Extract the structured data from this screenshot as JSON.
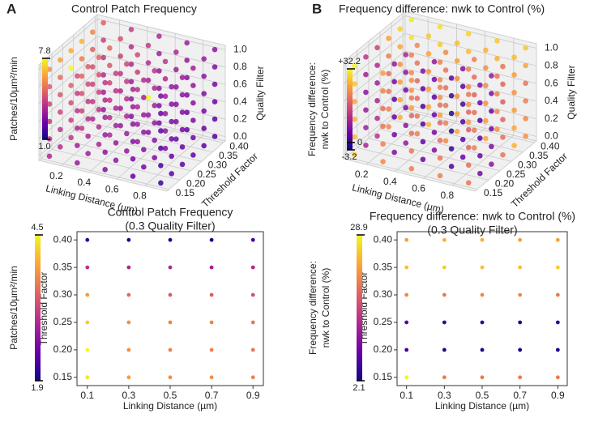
{
  "chart_data": [
    {
      "type": "scatter3d",
      "panel": "A",
      "title": "Control Patch Frequency",
      "x_label": "Linking Distance (µm)",
      "y_label": "Threshold Factor",
      "z_label": "Quality Filter",
      "colorbar_label": [
        "Patches/10µm²/min"
      ],
      "colormap": [
        "#0d0887",
        "#6a00a8",
        "#b12a90",
        "#e16462",
        "#fca636",
        "#f0f921"
      ],
      "x": [
        0.1,
        0.3,
        0.5,
        0.7,
        0.9
      ],
      "y": [
        0.15,
        0.2,
        0.25,
        0.3,
        0.35,
        0.4
      ],
      "z": [
        0,
        0.2,
        0.4,
        0.6,
        0.8,
        1
      ],
      "xlim": [
        0.04,
        0.96
      ],
      "ylim": [
        0.14,
        0.41
      ],
      "zlim": [
        -0.05,
        1.05
      ],
      "clim": [
        1,
        7.8
      ],
      "xticks": [
        0.2,
        0.4,
        0.6,
        0.8
      ],
      "yticks": [
        0.15,
        {
          "value": 0.2,
          "label": "0.20"
        },
        0.25,
        {
          "value": 0.3,
          "label": "0.30"
        },
        0.35,
        {
          "value": 0.4,
          "label": "0.40"
        }
      ],
      "zticks": [
        {
          "value": 0,
          "label": "0.0"
        },
        0.2,
        0.4,
        0.6,
        0.8,
        {
          "value": 1,
          "label": "1.0"
        }
      ],
      "cticks": [
        {
          "value": 1,
          "label": "1.0"
        },
        7.8
      ],
      "values": [
        [
          [
            3.6,
            3.2,
            2.8,
            2.4,
            1.6
          ],
          [
            3.8,
            3.3,
            3.0,
            2.6,
            2.1
          ],
          [
            4.0,
            3.5,
            3.1,
            2.7,
            2.2
          ],
          [
            4.1,
            3.6,
            3.2,
            2.8,
            2.3
          ],
          [
            3.7,
            3.2,
            2.9,
            2.5,
            2.2
          ],
          [
            3.2,
            2.9,
            2.6,
            2.3,
            2.0
          ]
        ],
        [
          [
            3.8,
            3.4,
            3.0,
            2.6,
            1.8
          ],
          [
            4.0,
            3.6,
            3.2,
            2.8,
            2.3
          ],
          [
            4.3,
            3.8,
            3.3,
            2.9,
            2.4
          ],
          [
            4.4,
            3.8,
            3.4,
            3.0,
            2.5
          ],
          [
            4.0,
            3.4,
            3.1,
            2.7,
            2.4
          ],
          [
            3.4,
            3.1,
            2.8,
            2.5,
            2.2
          ]
        ],
        [
          [
            4.1,
            3.6,
            3.2,
            2.8,
            2.0
          ],
          [
            4.4,
            3.8,
            3.4,
            3.0,
            2.5
          ],
          [
            4.6,
            4.0,
            3.6,
            3.1,
            2.6
          ],
          [
            4.7,
            4.1,
            3.6,
            3.2,
            2.7
          ],
          [
            4.3,
            3.7,
            7.8,
            2.9,
            2.6
          ],
          [
            3.7,
            3.3,
            3.0,
            2.7,
            2.4
          ]
        ],
        [
          [
            4.4,
            3.9,
            3.4,
            3.0,
            2.2
          ],
          [
            4.8,
            4.1,
            3.6,
            3.2,
            2.7
          ],
          [
            5.0,
            4.3,
            3.8,
            3.3,
            2.8
          ],
          [
            5.1,
            4.4,
            3.9,
            3.4,
            2.9
          ],
          [
            4.6,
            4.0,
            3.5,
            3.1,
            2.8
          ],
          [
            4.0,
            3.6,
            3.2,
            2.9,
            2.6
          ]
        ],
        [
          [
            4.9,
            4.2,
            3.7,
            3.2,
            2.4
          ],
          [
            5.3,
            4.5,
            3.9,
            3.4,
            2.9
          ],
          [
            7.8,
            4.7,
            4.1,
            3.6,
            3.0
          ],
          [
            5.6,
            4.8,
            4.2,
            3.7,
            3.1
          ],
          [
            5.0,
            4.3,
            3.8,
            3.3,
            3.0
          ],
          [
            4.3,
            3.8,
            3.4,
            3.1,
            2.8
          ]
        ],
        [
          [
            6.0,
            4.6,
            4.0,
            3.5,
            2.6
          ],
          [
            6.3,
            4.9,
            4.2,
            3.7,
            3.1
          ],
          [
            6.5,
            5.1,
            4.4,
            3.9,
            3.3
          ],
          [
            6.6,
            5.2,
            4.5,
            4.0,
            3.4
          ],
          [
            5.8,
            4.7,
            4.1,
            3.6,
            3.2
          ],
          [
            5.0,
            4.2,
            3.7,
            3.3,
            3.0
          ]
        ]
      ]
    },
    {
      "type": "scatter3d",
      "panel": "B",
      "title": "Frequency difference: nwk to Control (%)",
      "x_label": "Linking Distance (µm)",
      "y_label": "Threshold Factor",
      "z_label": "Quality Filter",
      "colorbar_label": [
        "Frequency difference:",
        "nwk to Control (%)"
      ],
      "colormap": [
        "#0d0887",
        "#6a00a8",
        "#b12a90",
        "#e16462",
        "#fca636",
        "#f0f921"
      ],
      "x": [
        0.1,
        0.3,
        0.5,
        0.7,
        0.9
      ],
      "y": [
        0.15,
        0.2,
        0.25,
        0.3,
        0.35,
        0.4
      ],
      "z": [
        0,
        0.2,
        0.4,
        0.6,
        0.8,
        1
      ],
      "xlim": [
        0.04,
        0.96
      ],
      "ylim": [
        0.14,
        0.41
      ],
      "zlim": [
        -0.05,
        1.05
      ],
      "clim": [
        -3.2,
        32.2
      ],
      "xticks": [
        0.2,
        0.4,
        0.6,
        0.8
      ],
      "yticks": [
        0.15,
        {
          "value": 0.2,
          "label": "0.20"
        },
        0.25,
        {
          "value": 0.3,
          "label": "0.30"
        },
        0.35,
        {
          "value": 0.4,
          "label": "0.40"
        }
      ],
      "zticks": [
        {
          "value": 0,
          "label": "0.0"
        },
        0.2,
        0.4,
        0.6,
        0.8,
        {
          "value": 1,
          "label": "1.0"
        }
      ],
      "cticks": [
        {
          "value": -3.2,
          "label": "-3.2"
        },
        0,
        {
          "value": 32.2,
          "label": "+32.2"
        }
      ],
      "values": [
        [
          [
            28,
            22,
            21,
            21,
            20
          ],
          [
            10,
            6,
            4,
            2,
            5
          ],
          [
            12,
            8,
            6,
            4,
            7
          ],
          [
            22,
            21,
            22,
            21,
            20
          ],
          [
            26,
            26,
            25,
            25,
            26
          ],
          [
            24,
            24,
            24,
            23,
            23
          ]
        ],
        [
          [
            27,
            21,
            20,
            20,
            19
          ],
          [
            9,
            5,
            3,
            0,
            4
          ],
          [
            11,
            7,
            5,
            3,
            6
          ],
          [
            21,
            20,
            21,
            20,
            19
          ],
          [
            25,
            25,
            24,
            24,
            25
          ],
          [
            23,
            23,
            23,
            22,
            22
          ]
        ],
        [
          [
            26,
            20,
            19,
            19,
            18
          ],
          [
            8,
            4,
            2,
            -1,
            3
          ],
          [
            10,
            6,
            4,
            2,
            5
          ],
          [
            20,
            19,
            20,
            19,
            18
          ],
          [
            24,
            24,
            23,
            23,
            24
          ],
          [
            22,
            22,
            22,
            21,
            21
          ]
        ],
        [
          [
            25,
            19,
            18,
            18,
            17
          ],
          [
            7,
            3,
            1,
            -2,
            2
          ],
          [
            9,
            5,
            3,
            1,
            4
          ],
          [
            19,
            18,
            19,
            18,
            17
          ],
          [
            23,
            23,
            22,
            22,
            23
          ],
          [
            21,
            21,
            21,
            20,
            20
          ]
        ],
        [
          [
            28,
            21,
            20,
            19,
            18
          ],
          [
            9,
            5,
            3,
            0,
            4
          ],
          [
            11,
            7,
            5,
            3,
            6
          ],
          [
            21,
            20,
            20,
            19,
            18
          ],
          [
            25,
            25,
            24,
            23,
            24
          ],
          [
            30,
            28,
            27,
            26,
            25
          ]
        ],
        [
          [
            32.2,
            24,
            22,
            21,
            20
          ],
          [
            12,
            8,
            6,
            3,
            6
          ],
          [
            14,
            10,
            8,
            6,
            8
          ],
          [
            24,
            22,
            22,
            21,
            20
          ],
          [
            29,
            28,
            27,
            26,
            27
          ],
          [
            31,
            30,
            29,
            28,
            28
          ]
        ]
      ]
    },
    {
      "type": "scatter2d",
      "title": [
        "Control Patch Frequency",
        "(0.3 Quality Filter)"
      ],
      "x_label": "Linking Distance (µm)",
      "y_label": "Threshold Factor",
      "colorbar_label": [
        "Patches/10µm²/min"
      ],
      "colormap": [
        "#0d0887",
        "#6a00a8",
        "#b12a90",
        "#e16462",
        "#fca636",
        "#f0f921"
      ],
      "x": [
        0.1,
        0.3,
        0.5,
        0.7,
        0.9
      ],
      "y": [
        0.15,
        0.2,
        0.25,
        0.3,
        0.35,
        0.4
      ],
      "xlim": [
        0.05,
        0.95
      ],
      "ylim": [
        0.135,
        0.415
      ],
      "clim": [
        1.9,
        4.5
      ],
      "xticks": [
        0.1,
        0.3,
        0.5,
        0.7,
        0.9
      ],
      "yticks": [
        0.15,
        {
          "value": 0.2,
          "label": "0.20"
        },
        0.25,
        {
          "value": 0.3,
          "label": "0.30"
        },
        0.35,
        {
          "value": 0.4,
          "label": "0.40"
        }
      ],
      "cticks": [
        1.9,
        4.5
      ],
      "values": [
        [
          4.4,
          3.9,
          3.8,
          3.8,
          3.7
        ],
        [
          4.5,
          3.8,
          3.7,
          3.7,
          3.6
        ],
        [
          4.2,
          3.8,
          3.7,
          3.7,
          3.6
        ],
        [
          3.9,
          3.5,
          3.4,
          3.4,
          3.3
        ],
        [
          3.0,
          2.9,
          2.9,
          2.8,
          2.9
        ],
        [
          2.1,
          2.0,
          2.0,
          1.9,
          2.2
        ]
      ]
    },
    {
      "type": "scatter2d",
      "title": [
        "Frequency difference: nwk to Control (%)",
        "(0.3 Quality Filter)"
      ],
      "x_label": "Linking Distance (µm)",
      "y_label": "Threshold Factor",
      "colorbar_label": [
        "Frequency difference:",
        "nwk to Control (%)"
      ],
      "colormap": [
        "#0d0887",
        "#6a00a8",
        "#b12a90",
        "#e16462",
        "#fca636",
        "#f0f921"
      ],
      "x": [
        0.1,
        0.3,
        0.5,
        0.7,
        0.9
      ],
      "y": [
        0.15,
        0.2,
        0.25,
        0.3,
        0.35,
        0.4
      ],
      "xlim": [
        0.05,
        0.95
      ],
      "ylim": [
        0.135,
        0.415
      ],
      "clim": [
        2.1,
        28.9
      ],
      "xticks": [
        0.1,
        0.3,
        0.5,
        0.7,
        0.9
      ],
      "yticks": [
        0.15,
        {
          "value": 0.2,
          "label": "0.20"
        },
        0.25,
        {
          "value": 0.3,
          "label": "0.30"
        },
        0.35,
        {
          "value": 0.4,
          "label": "0.40"
        }
      ],
      "cticks": [
        2.1,
        28.9
      ],
      "values": [
        [
          28.9,
          20,
          20,
          20,
          20
        ],
        [
          5,
          3,
          3,
          2.1,
          3
        ],
        [
          6,
          4,
          4,
          3,
          4
        ],
        [
          21,
          20,
          21,
          21,
          20
        ],
        [
          25,
          26,
          25,
          25,
          26
        ],
        [
          23,
          24,
          24,
          23,
          23
        ]
      ]
    }
  ]
}
